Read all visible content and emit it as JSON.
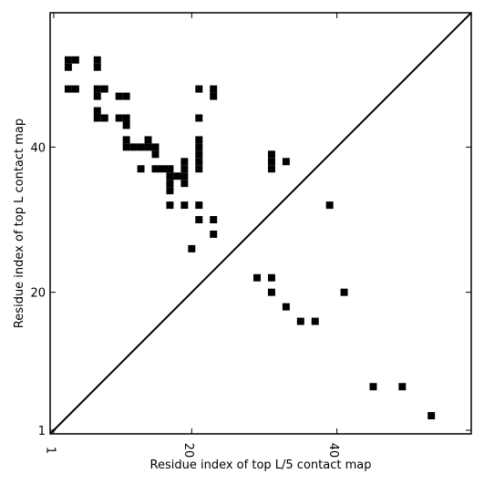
{
  "chart_data": {
    "type": "heatmap",
    "subtype": "contact-map-comparison",
    "xlabel": "Residue index of top L/5 contact map",
    "ylabel": "Residue index of top L contact map",
    "xlim": [
      0.5,
      58.5
    ],
    "ylim": [
      0.5,
      58.5
    ],
    "x_ticks": [
      1,
      20,
      40
    ],
    "y_ticks": [
      1,
      20,
      40
    ],
    "grid": false,
    "legend": "none",
    "diagonal_line": true,
    "cell_color": "#000000",
    "upper_triangle_cells": [
      [
        3,
        52
      ],
      [
        4,
        52
      ],
      [
        3,
        51
      ],
      [
        7,
        52
      ],
      [
        7,
        51
      ],
      [
        3,
        48
      ],
      [
        4,
        48
      ],
      [
        7,
        48
      ],
      [
        8,
        48
      ],
      [
        7,
        47
      ],
      [
        10,
        47
      ],
      [
        11,
        47
      ],
      [
        7,
        45
      ],
      [
        7,
        44
      ],
      [
        8,
        44
      ],
      [
        10,
        44
      ],
      [
        11,
        44
      ],
      [
        11,
        43
      ],
      [
        11,
        41
      ],
      [
        14,
        41
      ],
      [
        11,
        40
      ],
      [
        12,
        40
      ],
      [
        13,
        40
      ],
      [
        14,
        40
      ],
      [
        15,
        40
      ],
      [
        15,
        39
      ],
      [
        13,
        37
      ],
      [
        15,
        37
      ],
      [
        16,
        37
      ],
      [
        17,
        37
      ],
      [
        17,
        36
      ],
      [
        18,
        36
      ],
      [
        19,
        36
      ],
      [
        17,
        35
      ],
      [
        19,
        35
      ],
      [
        17,
        34
      ],
      [
        19,
        38
      ],
      [
        19,
        37
      ],
      [
        21,
        48
      ],
      [
        23,
        48
      ],
      [
        23,
        47
      ],
      [
        21,
        44
      ],
      [
        21,
        41
      ],
      [
        21,
        40
      ],
      [
        21,
        39
      ],
      [
        21,
        38
      ],
      [
        21,
        37
      ],
      [
        31,
        39
      ],
      [
        31,
        38
      ],
      [
        31,
        37
      ],
      [
        33,
        38
      ],
      [
        17,
        32
      ],
      [
        19,
        32
      ],
      [
        21,
        32
      ],
      [
        21,
        30
      ],
      [
        23,
        30
      ],
      [
        23,
        28
      ],
      [
        20,
        26
      ]
    ],
    "lower_triangle_cells": [
      [
        39,
        32
      ],
      [
        29,
        22
      ],
      [
        31,
        22
      ],
      [
        31,
        20
      ],
      [
        41,
        20
      ],
      [
        33,
        18
      ],
      [
        35,
        16
      ],
      [
        37,
        16
      ],
      [
        45,
        7
      ],
      [
        49,
        7
      ],
      [
        53,
        3
      ]
    ]
  }
}
